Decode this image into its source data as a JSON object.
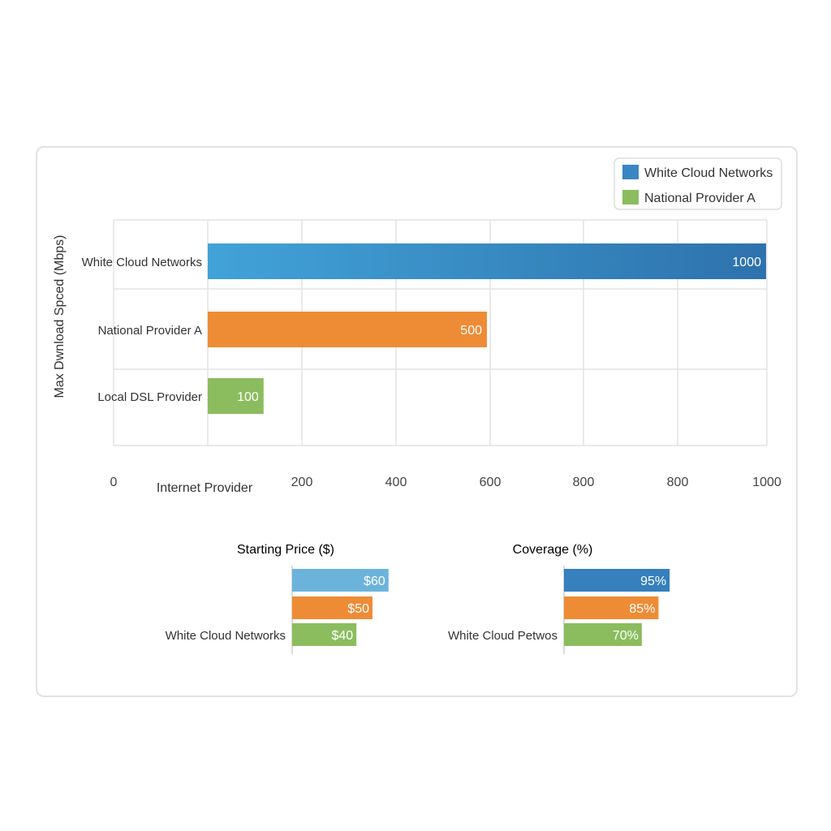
{
  "chart_data": [
    {
      "type": "bar",
      "orientation": "horizontal",
      "ylabel": "Max Dwnload Spced (Mbps)",
      "xlabel": "Internet Provider",
      "categories": [
        "White Cloud Networks",
        "National Provider A",
        "Local DSL Provider"
      ],
      "values": [
        1000,
        500,
        100
      ],
      "value_labels": [
        "1000",
        "500",
        "100"
      ],
      "colors": [
        "#3a8fc8",
        "#ee8c36",
        "#8bbd5f"
      ],
      "xticks": [
        "0",
        "200",
        "400",
        "600",
        "800",
        "800",
        "1000"
      ],
      "xlim": [
        0,
        1000
      ],
      "grid": true,
      "legend": {
        "placement": "top-right",
        "entries": [
          {
            "label": "White Cloud Networks",
            "color": "#3a86c4"
          },
          {
            "label": "National Provider A",
            "color": "#8bbd5f"
          }
        ]
      }
    },
    {
      "type": "bar",
      "orientation": "horizontal",
      "title": "Starting Price ($)",
      "categories": [
        "",
        "",
        "White Cloud Networks"
      ],
      "values": [
        60,
        50,
        40
      ],
      "value_labels": [
        "$60",
        "$50",
        "$40"
      ],
      "colors": [
        "#6cb3dc",
        "#ee8c36",
        "#8bbd5f"
      ]
    },
    {
      "type": "bar",
      "orientation": "horizontal",
      "title": "Coverage (%)",
      "categories": [
        "",
        "",
        "White Cloud Petwos"
      ],
      "values": [
        95,
        85,
        70
      ],
      "value_labels": [
        "95%",
        "85%",
        "70%"
      ],
      "colors": [
        "#3580bd",
        "#ee8c36",
        "#8bbd5f"
      ]
    }
  ]
}
